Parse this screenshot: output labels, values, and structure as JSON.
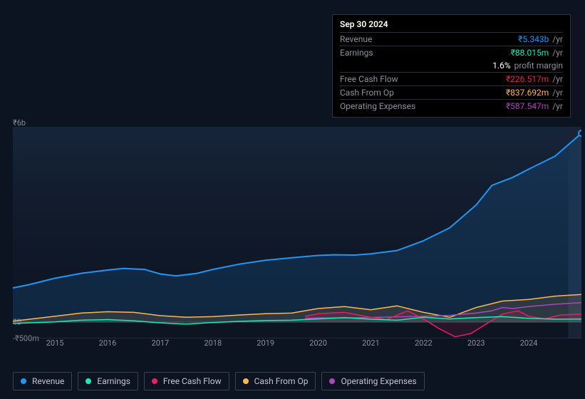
{
  "tooltip": {
    "date": "Sep 30 2024",
    "rows": [
      {
        "label": "Revenue",
        "value": "₹5.343b",
        "unit": "/yr",
        "color": "#2196f3"
      },
      {
        "label": "Earnings",
        "value": "₹88.015m",
        "unit": "/yr",
        "color": "#1de9b6"
      },
      {
        "label": "",
        "value": "1.6%",
        "unit": "profit margin",
        "color": "#ffffff",
        "sub": true
      },
      {
        "label": "Free Cash Flow",
        "value": "₹226.517m",
        "unit": "/yr",
        "color": "#e91e63"
      },
      {
        "label": "Cash From Op",
        "value": "₹837.692m",
        "unit": "/yr",
        "color": "#ffb74d"
      },
      {
        "label": "Operating Expenses",
        "value": "₹587.547m",
        "unit": "/yr",
        "color": "#ab47bc"
      }
    ]
  },
  "chart": {
    "type": "line",
    "background_color": "#0d1421",
    "plot_bg_gradient": [
      "rgba(30,50,80,0.6)",
      "rgba(15,25,40,0.2)"
    ],
    "x_years": [
      2015,
      2016,
      2017,
      2018,
      2019,
      2020,
      2021,
      2022,
      2023,
      2024
    ],
    "x_domain": [
      2014.2,
      2025
    ],
    "y_min": -500000000,
    "y_max": 6000000000,
    "y_labels": [
      {
        "value": 6000000000,
        "text": "₹6b"
      },
      {
        "value": 0,
        "text": "₹0"
      },
      {
        "value": -500000000,
        "text": "-₹500m"
      }
    ],
    "highlight_x": 2024.75,
    "series": [
      {
        "name": "Revenue",
        "color": "#2196f3",
        "stroke_width": 2,
        "area": true,
        "area_opacity": 0.15,
        "points": [
          [
            2014.2,
            1050000000
          ],
          [
            2014.5,
            1150000000
          ],
          [
            2015,
            1350000000
          ],
          [
            2015.5,
            1500000000
          ],
          [
            2016,
            1600000000
          ],
          [
            2016.3,
            1650000000
          ],
          [
            2016.7,
            1620000000
          ],
          [
            2017,
            1480000000
          ],
          [
            2017.3,
            1420000000
          ],
          [
            2017.7,
            1500000000
          ],
          [
            2018,
            1620000000
          ],
          [
            2018.5,
            1780000000
          ],
          [
            2019,
            1900000000
          ],
          [
            2019.5,
            1980000000
          ],
          [
            2020,
            2050000000
          ],
          [
            2020.3,
            2070000000
          ],
          [
            2020.7,
            2060000000
          ],
          [
            2021,
            2100000000
          ],
          [
            2021.5,
            2200000000
          ],
          [
            2022,
            2500000000
          ],
          [
            2022.5,
            2900000000
          ],
          [
            2023,
            3600000000
          ],
          [
            2023.3,
            4200000000
          ],
          [
            2023.7,
            4450000000
          ],
          [
            2024,
            4700000000
          ],
          [
            2024.5,
            5100000000
          ],
          [
            2025,
            5800000000
          ]
        ]
      },
      {
        "name": "Cash From Op",
        "color": "#ffb74d",
        "stroke_width": 1.5,
        "area": true,
        "area_opacity": 0.12,
        "points": [
          [
            2014.2,
            30000000
          ],
          [
            2015,
            180000000
          ],
          [
            2015.5,
            280000000
          ],
          [
            2016,
            320000000
          ],
          [
            2016.5,
            300000000
          ],
          [
            2017,
            200000000
          ],
          [
            2017.5,
            150000000
          ],
          [
            2018,
            170000000
          ],
          [
            2018.5,
            220000000
          ],
          [
            2019,
            260000000
          ],
          [
            2019.5,
            280000000
          ],
          [
            2020,
            420000000
          ],
          [
            2020.5,
            480000000
          ],
          [
            2021,
            380000000
          ],
          [
            2021.5,
            500000000
          ],
          [
            2022,
            300000000
          ],
          [
            2022.5,
            150000000
          ],
          [
            2023,
            450000000
          ],
          [
            2023.5,
            650000000
          ],
          [
            2024,
            700000000
          ],
          [
            2024.5,
            800000000
          ],
          [
            2025,
            850000000
          ]
        ]
      },
      {
        "name": "Operating Expenses",
        "color": "#ab47bc",
        "stroke_width": 1.5,
        "area": false,
        "start_x": 2019.75,
        "points": [
          [
            2019.75,
            120000000
          ],
          [
            2020,
            130000000
          ],
          [
            2020.5,
            130000000
          ],
          [
            2021,
            145000000
          ],
          [
            2021.5,
            160000000
          ],
          [
            2022,
            180000000
          ],
          [
            2022.5,
            210000000
          ],
          [
            2023,
            280000000
          ],
          [
            2023.3,
            350000000
          ],
          [
            2023.5,
            450000000
          ],
          [
            2023.7,
            420000000
          ],
          [
            2024,
            480000000
          ],
          [
            2024.5,
            550000000
          ],
          [
            2025,
            600000000
          ]
        ]
      },
      {
        "name": "Free Cash Flow",
        "color": "#e91e63",
        "stroke_width": 1.5,
        "area": true,
        "area_opacity": 0.12,
        "start_x": 2019.75,
        "points": [
          [
            2019.75,
            180000000
          ],
          [
            2020,
            260000000
          ],
          [
            2020.5,
            300000000
          ],
          [
            2021,
            150000000
          ],
          [
            2021.3,
            80000000
          ],
          [
            2021.7,
            350000000
          ],
          [
            2022,
            100000000
          ],
          [
            2022.3,
            -200000000
          ],
          [
            2022.6,
            -450000000
          ],
          [
            2022.9,
            -350000000
          ],
          [
            2023.2,
            -50000000
          ],
          [
            2023.5,
            250000000
          ],
          [
            2023.8,
            350000000
          ],
          [
            2024,
            180000000
          ],
          [
            2024.3,
            100000000
          ],
          [
            2024.6,
            220000000
          ],
          [
            2025,
            250000000
          ]
        ]
      },
      {
        "name": "Earnings",
        "color": "#1de9b6",
        "stroke_width": 1.5,
        "area": true,
        "area_opacity": 0.1,
        "points": [
          [
            2014.2,
            -40000000
          ],
          [
            2015,
            10000000
          ],
          [
            2015.5,
            60000000
          ],
          [
            2016,
            80000000
          ],
          [
            2016.5,
            40000000
          ],
          [
            2017,
            -20000000
          ],
          [
            2017.5,
            -60000000
          ],
          [
            2018,
            -10000000
          ],
          [
            2018.5,
            25000000
          ],
          [
            2019,
            50000000
          ],
          [
            2019.5,
            60000000
          ],
          [
            2020,
            100000000
          ],
          [
            2020.5,
            140000000
          ],
          [
            2021,
            90000000
          ],
          [
            2021.5,
            60000000
          ],
          [
            2022,
            150000000
          ],
          [
            2022.5,
            100000000
          ],
          [
            2023,
            140000000
          ],
          [
            2023.5,
            170000000
          ],
          [
            2024,
            120000000
          ],
          [
            2024.5,
            90000000
          ],
          [
            2025,
            95000000
          ]
        ]
      }
    ],
    "legend": [
      {
        "name": "Revenue",
        "color": "#2196f3"
      },
      {
        "name": "Earnings",
        "color": "#1de9b6"
      },
      {
        "name": "Free Cash Flow",
        "color": "#e91e63"
      },
      {
        "name": "Cash From Op",
        "color": "#ffb74d"
      },
      {
        "name": "Operating Expenses",
        "color": "#ab47bc"
      }
    ]
  }
}
